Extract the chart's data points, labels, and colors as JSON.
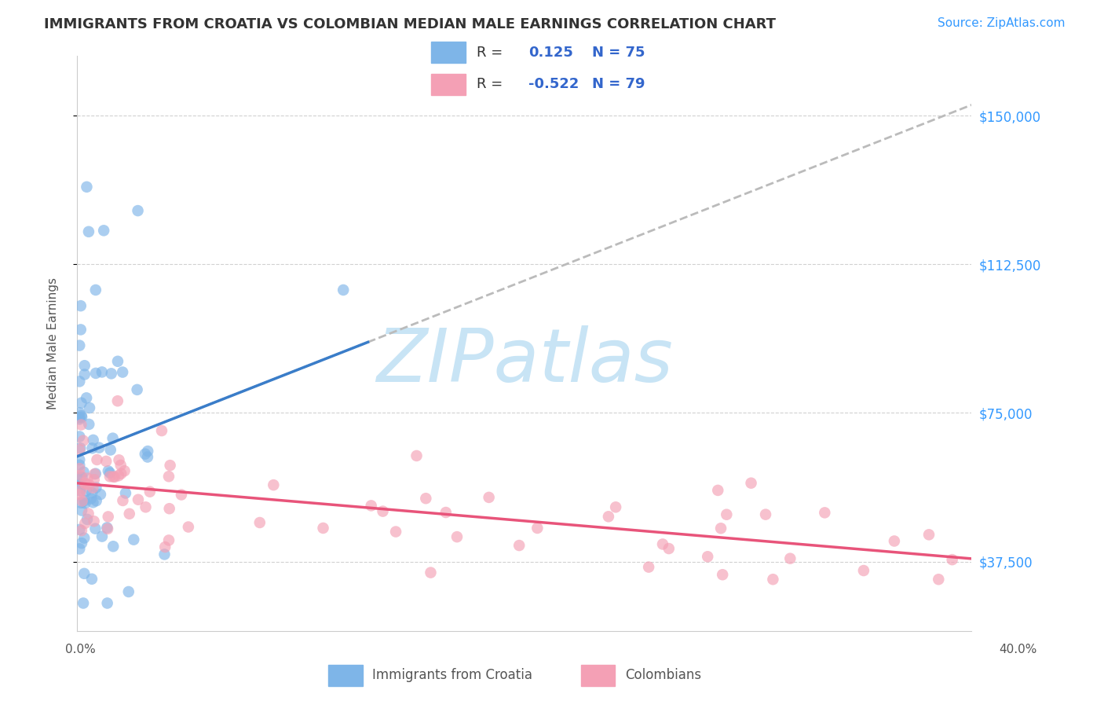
{
  "title": "IMMIGRANTS FROM CROATIA VS COLOMBIAN MEDIAN MALE EARNINGS CORRELATION CHART",
  "source": "Source: ZipAtlas.com",
  "ylabel": "Median Male Earnings",
  "yticks": [
    37500,
    75000,
    112500,
    150000
  ],
  "ytick_labels": [
    "$37,500",
    "$75,000",
    "$112,500",
    "$150,000"
  ],
  "xlim": [
    0.0,
    0.4
  ],
  "ylim": [
    20000,
    165000
  ],
  "croatia_R": 0.125,
  "croatia_N": 75,
  "colombian_R": -0.522,
  "colombian_N": 79,
  "croatia_color": "#7EB5E8",
  "colombian_color": "#F4A0B5",
  "croatia_line_color": "#3A7DC9",
  "colombian_line_color": "#E8547A",
  "trend_dashed_color": "#BBBBBB",
  "background_color": "#FFFFFF",
  "grid_color": "#CCCCCC",
  "watermark_color": "#C8E4F5",
  "legend_R_color": "#3366CC",
  "title_color": "#333333"
}
